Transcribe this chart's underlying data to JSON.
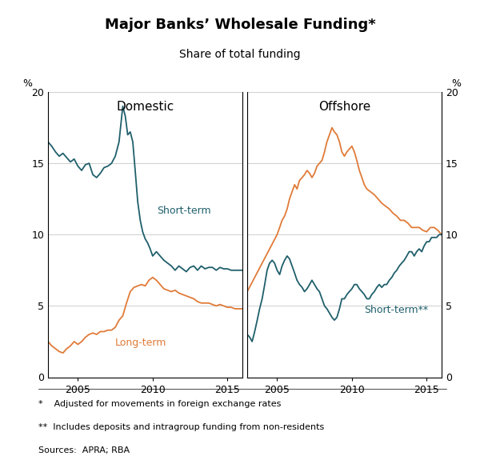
{
  "title": "Major Banks’ Wholesale Funding*",
  "subtitle": "Share of total funding",
  "left_panel_title": "Domestic",
  "right_panel_title": "Offshore",
  "ylabel": "%",
  "ylim": [
    0,
    20
  ],
  "yticks": [
    0,
    5,
    10,
    15,
    20
  ],
  "footnotes": [
    "*    Adjusted for movements in foreign exchange rates",
    "**  Includes deposits and intragroup funding from non-residents",
    "Sources:  APRA; RBA"
  ],
  "domestic_short_term": {
    "label": "Short-term",
    "color": "#1f5f6b",
    "dates": [
      2003.0,
      2003.25,
      2003.5,
      2003.75,
      2004.0,
      2004.25,
      2004.5,
      2004.75,
      2005.0,
      2005.25,
      2005.5,
      2005.75,
      2006.0,
      2006.25,
      2006.5,
      2006.75,
      2007.0,
      2007.25,
      2007.5,
      2007.75,
      2008.0,
      2008.17,
      2008.33,
      2008.5,
      2008.67,
      2008.83,
      2009.0,
      2009.17,
      2009.33,
      2009.5,
      2009.67,
      2009.83,
      2010.0,
      2010.25,
      2010.5,
      2010.75,
      2011.0,
      2011.25,
      2011.5,
      2011.75,
      2012.0,
      2012.25,
      2012.5,
      2012.75,
      2013.0,
      2013.25,
      2013.5,
      2013.75,
      2014.0,
      2014.25,
      2014.5,
      2014.75,
      2015.0,
      2015.25,
      2015.5,
      2015.75,
      2016.0
    ],
    "values": [
      16.5,
      16.2,
      15.8,
      15.5,
      15.7,
      15.4,
      15.1,
      15.3,
      14.8,
      14.5,
      14.9,
      15.0,
      14.2,
      14.0,
      14.3,
      14.7,
      14.8,
      15.0,
      15.5,
      16.5,
      19.0,
      18.3,
      17.0,
      17.2,
      16.5,
      14.5,
      12.3,
      11.0,
      10.2,
      9.7,
      9.4,
      9.0,
      8.5,
      8.8,
      8.5,
      8.2,
      8.0,
      7.8,
      7.5,
      7.8,
      7.6,
      7.4,
      7.7,
      7.8,
      7.5,
      7.8,
      7.6,
      7.7,
      7.7,
      7.5,
      7.7,
      7.6,
      7.6,
      7.5,
      7.5,
      7.5,
      7.5
    ]
  },
  "domestic_long_term": {
    "label": "Long-term",
    "color": "#e07b39",
    "dates": [
      2003.0,
      2003.25,
      2003.5,
      2003.75,
      2004.0,
      2004.25,
      2004.5,
      2004.75,
      2005.0,
      2005.25,
      2005.5,
      2005.75,
      2006.0,
      2006.25,
      2006.5,
      2006.75,
      2007.0,
      2007.25,
      2007.5,
      2007.75,
      2008.0,
      2008.25,
      2008.5,
      2008.75,
      2009.0,
      2009.25,
      2009.5,
      2009.75,
      2010.0,
      2010.25,
      2010.5,
      2010.75,
      2011.0,
      2011.25,
      2011.5,
      2011.75,
      2012.0,
      2012.25,
      2012.5,
      2012.75,
      2013.0,
      2013.25,
      2013.5,
      2013.75,
      2014.0,
      2014.25,
      2014.5,
      2014.75,
      2015.0,
      2015.25,
      2015.5,
      2015.75,
      2016.0
    ],
    "values": [
      2.5,
      2.2,
      2.0,
      1.8,
      1.7,
      2.0,
      2.2,
      2.5,
      2.3,
      2.5,
      2.8,
      3.0,
      3.1,
      3.0,
      3.2,
      3.2,
      3.3,
      3.3,
      3.5,
      4.0,
      4.3,
      5.2,
      6.0,
      6.3,
      6.4,
      6.5,
      6.4,
      6.8,
      7.0,
      6.8,
      6.5,
      6.2,
      6.1,
      6.0,
      6.1,
      5.9,
      5.8,
      5.7,
      5.6,
      5.5,
      5.3,
      5.2,
      5.2,
      5.2,
      5.1,
      5.0,
      5.1,
      5.0,
      4.9,
      4.9,
      4.8,
      4.8,
      4.8
    ]
  },
  "offshore_long_term": {
    "label": "Long-term",
    "color": "#e07b39",
    "dates": [
      2003.0,
      2003.25,
      2003.5,
      2003.75,
      2004.0,
      2004.25,
      2004.5,
      2004.75,
      2005.0,
      2005.17,
      2005.33,
      2005.5,
      2005.67,
      2005.83,
      2006.0,
      2006.17,
      2006.33,
      2006.5,
      2006.67,
      2006.83,
      2007.0,
      2007.17,
      2007.33,
      2007.5,
      2007.67,
      2007.83,
      2008.0,
      2008.17,
      2008.33,
      2008.5,
      2008.67,
      2008.83,
      2009.0,
      2009.17,
      2009.33,
      2009.5,
      2009.67,
      2009.83,
      2010.0,
      2010.17,
      2010.33,
      2010.5,
      2010.67,
      2010.83,
      2011.0,
      2011.25,
      2011.5,
      2011.75,
      2012.0,
      2012.25,
      2012.5,
      2012.75,
      2013.0,
      2013.25,
      2013.5,
      2013.75,
      2014.0,
      2014.25,
      2014.5,
      2014.75,
      2015.0,
      2015.25,
      2015.5,
      2015.75,
      2016.0
    ],
    "values": [
      6.0,
      6.5,
      7.0,
      7.5,
      8.0,
      8.5,
      9.0,
      9.5,
      10.0,
      10.5,
      11.0,
      11.3,
      11.8,
      12.5,
      13.0,
      13.5,
      13.2,
      13.8,
      14.0,
      14.2,
      14.5,
      14.3,
      14.0,
      14.3,
      14.8,
      15.0,
      15.2,
      15.8,
      16.5,
      17.0,
      17.5,
      17.2,
      17.0,
      16.5,
      15.8,
      15.5,
      15.8,
      16.0,
      16.2,
      15.8,
      15.2,
      14.5,
      14.0,
      13.5,
      13.2,
      13.0,
      12.8,
      12.5,
      12.2,
      12.0,
      11.8,
      11.5,
      11.3,
      11.0,
      11.0,
      10.8,
      10.5,
      10.5,
      10.5,
      10.3,
      10.2,
      10.5,
      10.5,
      10.3,
      10.0
    ]
  },
  "offshore_short_term": {
    "label": "Short-term**",
    "color": "#1f5f6b",
    "dates": [
      2003.0,
      2003.17,
      2003.33,
      2003.5,
      2003.67,
      2003.83,
      2004.0,
      2004.17,
      2004.33,
      2004.5,
      2004.67,
      2004.83,
      2005.0,
      2005.17,
      2005.33,
      2005.5,
      2005.67,
      2005.83,
      2006.0,
      2006.17,
      2006.33,
      2006.5,
      2006.67,
      2006.83,
      2007.0,
      2007.17,
      2007.33,
      2007.5,
      2007.67,
      2007.83,
      2008.0,
      2008.17,
      2008.33,
      2008.5,
      2008.67,
      2008.83,
      2009.0,
      2009.17,
      2009.33,
      2009.5,
      2009.67,
      2009.83,
      2010.0,
      2010.17,
      2010.33,
      2010.5,
      2010.67,
      2010.83,
      2011.0,
      2011.17,
      2011.33,
      2011.5,
      2011.67,
      2011.83,
      2012.0,
      2012.17,
      2012.33,
      2012.5,
      2012.67,
      2012.83,
      2013.0,
      2013.17,
      2013.33,
      2013.5,
      2013.67,
      2013.83,
      2014.0,
      2014.17,
      2014.33,
      2014.5,
      2014.67,
      2014.83,
      2015.0,
      2015.17,
      2015.33,
      2015.5,
      2015.67,
      2015.83,
      2016.0
    ],
    "values": [
      3.0,
      2.8,
      2.5,
      3.2,
      4.0,
      4.8,
      5.5,
      6.5,
      7.5,
      8.0,
      8.2,
      8.0,
      7.5,
      7.2,
      7.8,
      8.2,
      8.5,
      8.3,
      7.8,
      7.3,
      6.8,
      6.5,
      6.3,
      6.0,
      6.2,
      6.5,
      6.8,
      6.5,
      6.2,
      6.0,
      5.5,
      5.0,
      4.8,
      4.5,
      4.2,
      4.0,
      4.2,
      4.8,
      5.5,
      5.5,
      5.8,
      6.0,
      6.2,
      6.5,
      6.5,
      6.2,
      6.0,
      5.8,
      5.5,
      5.5,
      5.8,
      6.0,
      6.3,
      6.5,
      6.3,
      6.5,
      6.5,
      6.8,
      7.0,
      7.3,
      7.5,
      7.8,
      8.0,
      8.2,
      8.5,
      8.8,
      8.8,
      8.5,
      8.8,
      9.0,
      8.8,
      9.2,
      9.5,
      9.5,
      9.8,
      9.8,
      9.8,
      10.0,
      10.0
    ]
  }
}
